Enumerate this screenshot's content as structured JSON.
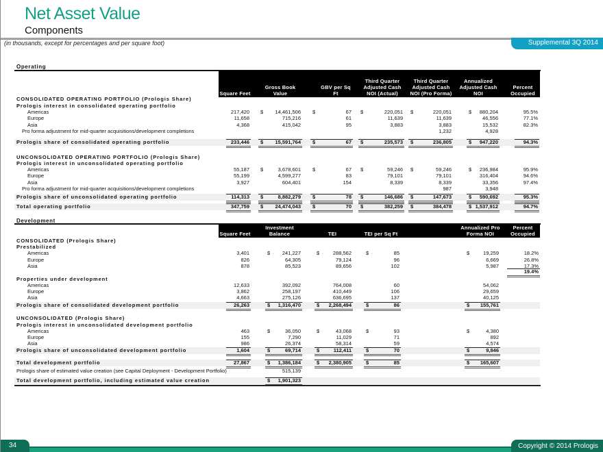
{
  "header": {
    "title": "Net Asset Value",
    "subtitle": "Components",
    "units_note": "(in thousands, except for percentages and per square foot)",
    "badge": "Supplemental 3Q 2014"
  },
  "footer": {
    "page_number": "34",
    "copyright": "Copyright © 2014 Prologis"
  },
  "operating": {
    "title": "Operating",
    "columns": [
      "Square Feet",
      "Gross Book Value",
      "GBV per Sq Ft",
      "Third Quarter Adjusted Cash NOI (Actual)",
      "Third Quarter Adjusted Cash NOI (Pro Forma)",
      "Annualized Adjusted Cash NOI",
      "Percent Occupied"
    ],
    "rows": [
      {
        "type": "section",
        "label": "CONSOLIDATED OPERATING PORTFOLIO (Prologis Share)",
        "cells": []
      },
      {
        "type": "sub",
        "label": "Prologis interest in consolidated operating portfolio",
        "cells": []
      },
      {
        "type": "item",
        "label": "Americas",
        "cells": [
          "217,420",
          "$ 14,461,506",
          "$ 67",
          "$ 220,051",
          "$ 220,051",
          "$ 880,204",
          "95.5%"
        ]
      },
      {
        "type": "item",
        "label": "Europe",
        "cells": [
          "11,658",
          "715,216",
          "61",
          "11,639",
          "11,639",
          "46,556",
          "77.1%"
        ]
      },
      {
        "type": "item",
        "label": "Asia",
        "cells": [
          "4,368",
          "415,042",
          "95",
          "3,883",
          "3,883",
          "15,532",
          "82.3%"
        ]
      },
      {
        "type": "note",
        "label": "Pro forma adjustment for mid-quarter acquisitions/development completions",
        "cells": [
          "",
          "",
          "",
          "",
          "1,232",
          "4,928",
          ""
        ]
      },
      {
        "type": "total",
        "label": "Prologis share of consolidated operating portfolio",
        "cells": [
          "233,446",
          "$ 15,591,764",
          "$ 67",
          "$ 235,573",
          "$ 236,805",
          "$ 947,220",
          "94.3%"
        ]
      },
      {
        "type": "section",
        "label": "UNCONSOLIDATED OPERATING PORTFOLIO (Prologis Share)",
        "cells": []
      },
      {
        "type": "sub",
        "label": "Prologis interest in unconsolidated operating portfolio",
        "cells": []
      },
      {
        "type": "item",
        "label": "Americas",
        "cells": [
          "55,187",
          "$ 3,678,601",
          "$ 67",
          "$ 59,246",
          "$ 59,246",
          "$ 236,984",
          "95.9%"
        ]
      },
      {
        "type": "item",
        "label": "Europe",
        "cells": [
          "55,199",
          "4,599,277",
          "83",
          "79,101",
          "79,101",
          "316,404",
          "94.6%"
        ]
      },
      {
        "type": "item",
        "label": "Asia",
        "cells": [
          "3,927",
          "604,401",
          "154",
          "8,339",
          "8,339",
          "33,356",
          "97.4%"
        ]
      },
      {
        "type": "note",
        "label": "Pro forma adjustment for mid-quarter acquisitions/development completions",
        "cells": [
          "",
          "",
          "",
          "",
          "987",
          "3,948",
          ""
        ]
      },
      {
        "type": "total",
        "label": "Prologis share of unconsolidated operating portfolio",
        "cells": [
          "114,313",
          "$ 8,882,279",
          "$ 78",
          "$ 146,686",
          "$ 147,673",
          "$ 590,692",
          "95.3%"
        ]
      },
      {
        "type": "total",
        "label": "Total operating portfolio",
        "cells": [
          "347,759",
          "$ 24,474,043",
          "$ 70",
          "$ 382,259",
          "$ 384,478",
          "$ 1,537,912",
          "94.7%"
        ]
      }
    ]
  },
  "development": {
    "title": "Development",
    "columns": [
      "Square Feet",
      "Investment Balance",
      "TEI",
      "TEI per Sq Ft",
      "",
      "Annualized Pro Forma NOI",
      "Percent Occupied"
    ],
    "rows": [
      {
        "type": "section",
        "label": "CONSOLIDATED (Prologis Share)",
        "cells": []
      },
      {
        "type": "sub",
        "label": "Prestabilized",
        "cells": []
      },
      {
        "type": "item",
        "label": "Americas",
        "cells": [
          "3,401",
          "$ 241,227",
          "$ 288,562",
          "$ 85",
          "",
          "$ 19,259",
          "18.2%"
        ]
      },
      {
        "type": "item",
        "label": "Europe",
        "cells": [
          "826",
          "64,305",
          "79,124",
          "96",
          "",
          "6,669",
          "26.8%"
        ]
      },
      {
        "type": "item",
        "label": "Asia",
        "cells": [
          "878",
          "85,523",
          "89,656",
          "102",
          "",
          "5,987",
          "17.3%"
        ]
      },
      {
        "type": "subtotal",
        "label": "",
        "cells": [
          "",
          "",
          "",
          "",
          "",
          "",
          "19.4%"
        ]
      },
      {
        "type": "sub",
        "label": "Properties under development",
        "cells": []
      },
      {
        "type": "item",
        "label": "Americas",
        "cells": [
          "12,633",
          "392,092",
          "764,008",
          "60",
          "",
          "54,062",
          ""
        ]
      },
      {
        "type": "item",
        "label": "Europe",
        "cells": [
          "3,862",
          "258,197",
          "410,449",
          "106",
          "",
          "29,659",
          ""
        ]
      },
      {
        "type": "item",
        "label": "Asia",
        "cells": [
          "4,663",
          "275,126",
          "636,695",
          "137",
          "",
          "40,125",
          ""
        ]
      },
      {
        "type": "total",
        "label": "Prologis share of consolidated development portfolio",
        "cells": [
          "26,263",
          "$ 1,316,470",
          "$ 2,268,494",
          "$ 86",
          "",
          "$ 155,761",
          ""
        ]
      },
      {
        "type": "section",
        "label": "UNCONSOLIDATED (Prologis Share)",
        "cells": []
      },
      {
        "type": "sub",
        "label": "Prologis interest in unconsolidated development portfolio",
        "cells": []
      },
      {
        "type": "item",
        "label": "Americas",
        "cells": [
          "463",
          "$ 36,050",
          "$ 43,068",
          "$ 93",
          "",
          "$ 4,380",
          ""
        ]
      },
      {
        "type": "item",
        "label": "Europe",
        "cells": [
          "155",
          "7,290",
          "11,029",
          "71",
          "",
          "892",
          ""
        ]
      },
      {
        "type": "item",
        "label": "Asia",
        "cells": [
          "986",
          "26,374",
          "58,314",
          "59",
          "",
          "4,574",
          ""
        ]
      },
      {
        "type": "total",
        "label": "Prologis share of unconsolidated development portfolio",
        "cells": [
          "1,604",
          "$ 69,714",
          "$ 112,411",
          "$ 70",
          "",
          "$ 9,846",
          ""
        ]
      },
      {
        "type": "total",
        "label": "Total development portfolio",
        "cells": [
          "27,867",
          "$ 1,386,184",
          "$ 2,380,905",
          "$ 85",
          "",
          "$ 165,607",
          ""
        ]
      },
      {
        "type": "note2",
        "label": "Prologis share of estimated value creation (see Capital Deployment - Development Portfolio)",
        "cells": [
          "",
          "515,139",
          "",
          "",
          "",
          "",
          ""
        ]
      },
      {
        "type": "total",
        "label": "Total development portfolio, including estimated value creation",
        "cells": [
          "",
          "$ 1,901,323",
          "",
          "",
          "",
          "",
          ""
        ]
      }
    ]
  },
  "colors": {
    "title": "#13a085",
    "badge": "#12a0c4",
    "footer": "#0f6e55",
    "header_band": "#000000"
  }
}
